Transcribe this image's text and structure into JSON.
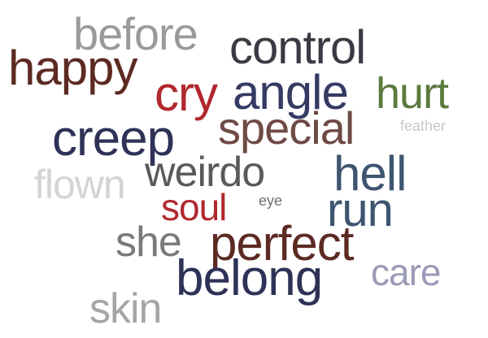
{
  "words": [
    {
      "id": "before",
      "text": "before",
      "color": "#9a9a9a"
    },
    {
      "id": "control",
      "text": "control",
      "color": "#3a3a44"
    },
    {
      "id": "happy",
      "text": "happy",
      "color": "#5c2a22"
    },
    {
      "id": "cry",
      "text": "cry",
      "color": "#b0282e"
    },
    {
      "id": "angle",
      "text": "angle",
      "color": "#343a63"
    },
    {
      "id": "hurt",
      "text": "hurt",
      "color": "#5b7a3e"
    },
    {
      "id": "creep",
      "text": "creep",
      "color": "#2e3257"
    },
    {
      "id": "special",
      "text": "special",
      "color": "#6e4a45"
    },
    {
      "id": "feather",
      "text": "feather",
      "color": "#c8c8c8"
    },
    {
      "id": "flown",
      "text": "flown",
      "color": "#d4d4d4"
    },
    {
      "id": "weirdo",
      "text": "weirdo",
      "color": "#5a5a5a"
    },
    {
      "id": "hell",
      "text": "hell",
      "color": "#3e5570"
    },
    {
      "id": "soul",
      "text": "soul",
      "color": "#b0282e"
    },
    {
      "id": "eye",
      "text": "eye",
      "color": "#6e6e6e"
    },
    {
      "id": "run",
      "text": "run",
      "color": "#3e5570"
    },
    {
      "id": "she",
      "text": "she",
      "color": "#7a7a7a"
    },
    {
      "id": "perfect",
      "text": "perfect",
      "color": "#5c2a22"
    },
    {
      "id": "belong",
      "text": "belong",
      "color": "#2e3257"
    },
    {
      "id": "care",
      "text": "care",
      "color": "#9a9ab8"
    },
    {
      "id": "skin",
      "text": "skin",
      "color": "#a5a5a5"
    }
  ]
}
